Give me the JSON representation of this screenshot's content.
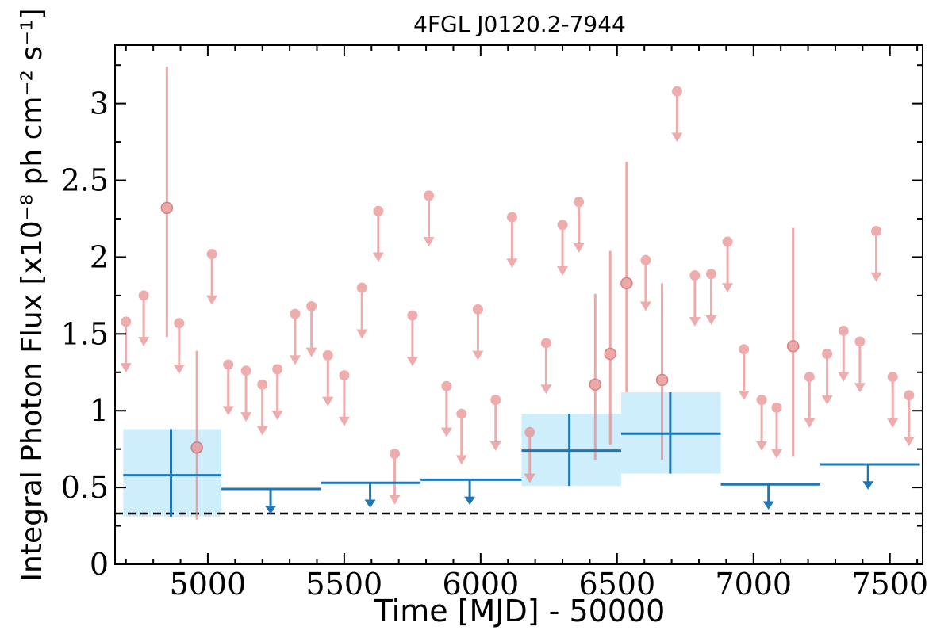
{
  "chart_data": {
    "type": "scatter",
    "title": "4FGL J0120.2-7944",
    "xlabel": "Time [MJD] - 50000",
    "ylabel": "Integral Photon Flux [x10⁻⁸ ph cm⁻² s⁻¹]",
    "xlim": [
      4660,
      7620
    ],
    "ylim": [
      0,
      3.38
    ],
    "xticks": [
      5000,
      5500,
      6000,
      6500,
      7000,
      7500
    ],
    "xtick_labels": [
      "5000",
      "5500",
      "6000",
      "6500",
      "7000",
      "7500"
    ],
    "yticks": [
      0,
      0.5,
      1,
      1.5,
      2,
      2.5,
      3
    ],
    "ytick_labels": [
      "0",
      "0.5",
      "1",
      "1.5",
      "2",
      "2.5",
      "3"
    ],
    "reference_line": 0.33,
    "colors": {
      "short_bin": "#e88a8a",
      "long_bin": "#1f77b4",
      "long_bin_band": "#cfeefc",
      "reference": "#000000"
    },
    "series": [
      {
        "bin": "short",
        "detections": [
          {
            "x": 4850,
            "y": 2.32,
            "lo": 1.48,
            "hi": 3.24
          },
          {
            "x": 4960,
            "y": 0.76,
            "lo": 0.29,
            "hi": 1.39
          },
          {
            "x": 6475,
            "y": 1.37,
            "lo": 0.78,
            "hi": 2.04
          },
          {
            "x": 6535,
            "y": 1.83,
            "lo": 1.12,
            "hi": 2.62
          },
          {
            "x": 6665,
            "y": 1.2,
            "lo": 0.68,
            "hi": 1.83
          },
          {
            "x": 6420,
            "y": 1.17,
            "lo": 0.68,
            "hi": 1.76
          },
          {
            "x": 7145,
            "y": 1.42,
            "lo": 0.7,
            "hi": 2.19
          }
        ],
        "upper_limits": [
          {
            "x": 4700,
            "y": 1.58
          },
          {
            "x": 4765,
            "y": 1.75
          },
          {
            "x": 4895,
            "y": 1.57
          },
          {
            "x": 5015,
            "y": 2.02
          },
          {
            "x": 5075,
            "y": 1.3
          },
          {
            "x": 5140,
            "y": 1.26
          },
          {
            "x": 5200,
            "y": 1.17
          },
          {
            "x": 5255,
            "y": 1.27
          },
          {
            "x": 5320,
            "y": 1.63
          },
          {
            "x": 5380,
            "y": 1.68
          },
          {
            "x": 5440,
            "y": 1.36
          },
          {
            "x": 5500,
            "y": 1.23
          },
          {
            "x": 5565,
            "y": 1.8
          },
          {
            "x": 5625,
            "y": 2.3
          },
          {
            "x": 5685,
            "y": 0.72
          },
          {
            "x": 5750,
            "y": 1.62
          },
          {
            "x": 5810,
            "y": 2.4
          },
          {
            "x": 5875,
            "y": 1.16
          },
          {
            "x": 5930,
            "y": 0.98
          },
          {
            "x": 5990,
            "y": 1.66
          },
          {
            "x": 6055,
            "y": 1.07
          },
          {
            "x": 6115,
            "y": 2.26
          },
          {
            "x": 6180,
            "y": 0.86
          },
          {
            "x": 6240,
            "y": 1.44
          },
          {
            "x": 6300,
            "y": 2.21
          },
          {
            "x": 6360,
            "y": 2.36
          },
          {
            "x": 6605,
            "y": 1.98
          },
          {
            "x": 6720,
            "y": 3.08
          },
          {
            "x": 6785,
            "y": 1.88
          },
          {
            "x": 6845,
            "y": 1.89
          },
          {
            "x": 6905,
            "y": 2.1
          },
          {
            "x": 6965,
            "y": 1.4
          },
          {
            "x": 7030,
            "y": 1.07
          },
          {
            "x": 7085,
            "y": 1.02
          },
          {
            "x": 7205,
            "y": 1.22
          },
          {
            "x": 7270,
            "y": 1.37
          },
          {
            "x": 7330,
            "y": 1.52
          },
          {
            "x": 7390,
            "y": 1.45
          },
          {
            "x": 7450,
            "y": 2.17
          },
          {
            "x": 7510,
            "y": 1.22
          },
          {
            "x": 7570,
            "y": 1.1
          }
        ]
      },
      {
        "bin": "long",
        "detections": [
          {
            "x": 4865,
            "x0": 4690,
            "x1": 5050,
            "y": 0.58,
            "lo": 0.31,
            "hi": 0.88
          },
          {
            "x": 6325,
            "x0": 6150,
            "x1": 6515,
            "y": 0.74,
            "lo": 0.51,
            "hi": 0.98
          },
          {
            "x": 6695,
            "x0": 6515,
            "x1": 6880,
            "y": 0.85,
            "lo": 0.59,
            "hi": 1.12
          }
        ],
        "upper_limits": [
          {
            "x": 5230,
            "x0": 5050,
            "x1": 5415,
            "y": 0.49
          },
          {
            "x": 5595,
            "x0": 5415,
            "x1": 5780,
            "y": 0.53
          },
          {
            "x": 5960,
            "x0": 5780,
            "x1": 6150,
            "y": 0.55
          },
          {
            "x": 7055,
            "x0": 6880,
            "x1": 7245,
            "y": 0.52
          },
          {
            "x": 7420,
            "x0": 7245,
            "x1": 7610,
            "y": 0.65
          }
        ]
      }
    ]
  }
}
